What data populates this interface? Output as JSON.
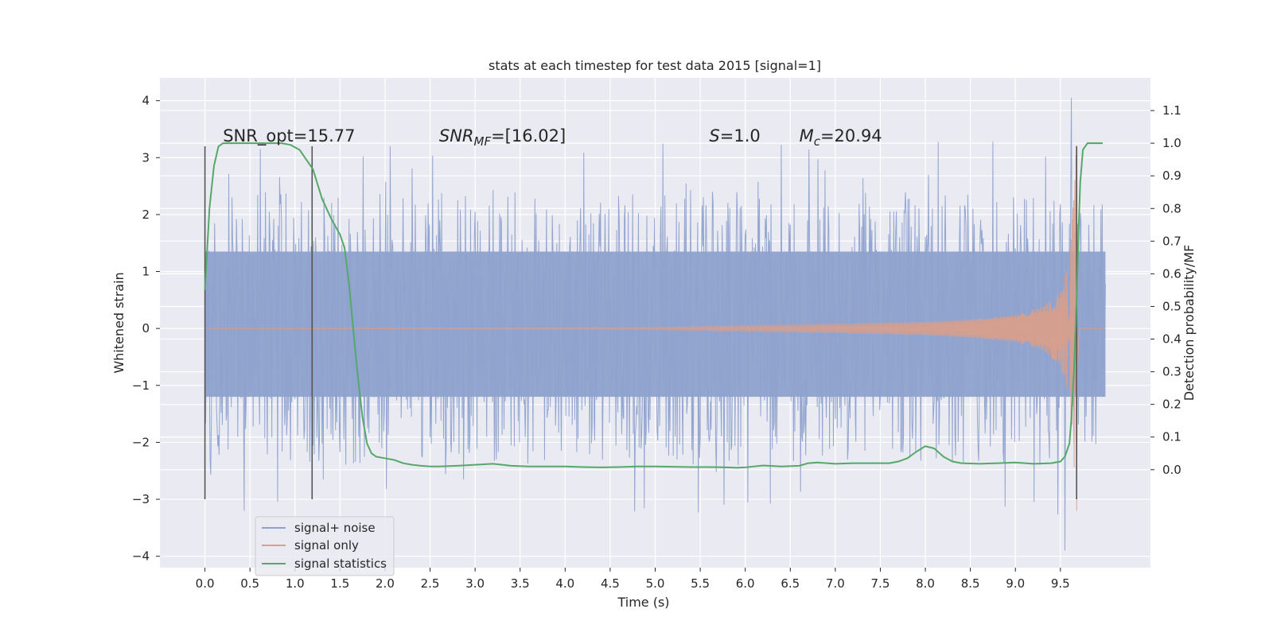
{
  "chart_data": {
    "type": "line",
    "title": "stats at each timestep for test data 2015 [signal=1]",
    "xlabel": "Time (s)",
    "ylabel": "Whitened strain",
    "ylabel_right": "Detection probability/MF",
    "xlim": [
      -0.5,
      10.5
    ],
    "ylim": [
      -4.2,
      4.4
    ],
    "ylim_right": [
      -0.3,
      1.2
    ],
    "x_ticks": [
      0.0,
      0.5,
      1.0,
      1.5,
      2.0,
      2.5,
      3.0,
      3.5,
      4.0,
      4.5,
      5.0,
      5.5,
      6.0,
      6.5,
      7.0,
      7.5,
      8.0,
      8.5,
      9.0,
      9.5
    ],
    "x_tick_labels": [
      "0.0",
      "0.5",
      "1.0",
      "1.5",
      "2.0",
      "2.5",
      "3.0",
      "3.5",
      "4.0",
      "4.5",
      "5.0",
      "5.5",
      "6.0",
      "6.5",
      "7.0",
      "7.5",
      "8.0",
      "8.5",
      "9.0",
      "9.5"
    ],
    "y_ticks": [
      -4,
      -3,
      -2,
      -1,
      0,
      1,
      2,
      3,
      4
    ],
    "y_tick_labels": [
      "−4",
      "−3",
      "−2",
      "−1",
      "0",
      "1",
      "2",
      "3",
      "4"
    ],
    "y_ticks_right": [
      0.0,
      0.1,
      0.2,
      0.3,
      0.4,
      0.5,
      0.6,
      0.7,
      0.8,
      0.9,
      1.0,
      1.1
    ],
    "y_tick_labels_right": [
      "0.0",
      "0.1",
      "0.2",
      "0.3",
      "0.4",
      "0.5",
      "0.6",
      "0.7",
      "0.8",
      "0.9",
      "1.0",
      "1.1"
    ],
    "grid": true,
    "legend_position": "lower-left",
    "noise_envelope": {
      "x_range": [
        0.0,
        10.0
      ],
      "core_band": [
        -1.2,
        1.35
      ],
      "typical_peak": 2.4,
      "max_peak": 4.05,
      "min_peak": -3.9
    },
    "signal_envelope": {
      "merger_time": 9.68,
      "points": [
        {
          "t": 5.0,
          "a": 0.02
        },
        {
          "t": 6.0,
          "a": 0.05
        },
        {
          "t": 7.0,
          "a": 0.08
        },
        {
          "t": 8.0,
          "a": 0.12
        },
        {
          "t": 8.5,
          "a": 0.16
        },
        {
          "t": 9.0,
          "a": 0.24
        },
        {
          "t": 9.3,
          "a": 0.38
        },
        {
          "t": 9.5,
          "a": 0.65
        },
        {
          "t": 9.6,
          "a": 1.2
        },
        {
          "t": 9.65,
          "a": 2.4
        },
        {
          "t": 9.68,
          "a": 3.3
        }
      ]
    },
    "series": [
      {
        "name": "signal+ noise",
        "color": "#8ea2cd"
      },
      {
        "name": "signal only",
        "color": "#dd9e88"
      },
      {
        "name": "signal statistics",
        "color": "#55a868",
        "axis": "right",
        "x": [
          0.0,
          0.05,
          0.1,
          0.15,
          0.2,
          0.3,
          0.5,
          0.7,
          0.85,
          0.95,
          1.05,
          1.1,
          1.2,
          1.3,
          1.4,
          1.5,
          1.55,
          1.6,
          1.65,
          1.7,
          1.75,
          1.8,
          1.85,
          1.9,
          2.0,
          2.1,
          2.2,
          2.3,
          2.4,
          2.5,
          2.6,
          2.8,
          3.0,
          3.2,
          3.4,
          3.6,
          3.8,
          4.0,
          4.2,
          4.4,
          4.6,
          4.8,
          5.0,
          5.2,
          5.4,
          5.6,
          5.8,
          5.9,
          6.0,
          6.1,
          6.2,
          6.4,
          6.6,
          6.7,
          6.8,
          7.0,
          7.2,
          7.4,
          7.6,
          7.7,
          7.8,
          7.9,
          8.0,
          8.1,
          8.2,
          8.3,
          8.4,
          8.6,
          8.8,
          9.0,
          9.2,
          9.4,
          9.5,
          9.55,
          9.6,
          9.62,
          9.65,
          9.68,
          9.7,
          9.72,
          9.75,
          9.8,
          9.9,
          9.97
        ],
        "y": [
          0.55,
          0.8,
          0.93,
          0.99,
          1.0,
          1.0,
          1.0,
          1.0,
          1.0,
          0.995,
          0.98,
          0.96,
          0.92,
          0.83,
          0.77,
          0.72,
          0.68,
          0.57,
          0.42,
          0.28,
          0.16,
          0.08,
          0.05,
          0.04,
          0.035,
          0.03,
          0.02,
          0.015,
          0.012,
          0.01,
          0.01,
          0.012,
          0.015,
          0.018,
          0.012,
          0.01,
          0.01,
          0.01,
          0.008,
          0.007,
          0.008,
          0.01,
          0.01,
          0.009,
          0.008,
          0.008,
          0.007,
          0.006,
          0.007,
          0.01,
          0.013,
          0.01,
          0.012,
          0.02,
          0.022,
          0.018,
          0.02,
          0.02,
          0.02,
          0.025,
          0.035,
          0.055,
          0.072,
          0.065,
          0.04,
          0.025,
          0.02,
          0.018,
          0.02,
          0.022,
          0.018,
          0.02,
          0.025,
          0.04,
          0.08,
          0.15,
          0.3,
          0.52,
          0.72,
          0.88,
          0.98,
          1.0,
          1.0,
          1.0
        ]
      }
    ],
    "vertical_markers": [
      {
        "x": 0.0,
        "ymin": -3.0,
        "ymax": 3.2,
        "color": "#555555"
      },
      {
        "x": 1.19,
        "ymin": -3.0,
        "ymax": 3.2,
        "color": "#555555"
      },
      {
        "x": 9.68,
        "ymin": -3.0,
        "ymax": 3.2,
        "color": "#555555"
      }
    ],
    "annotations": [
      {
        "name": "snr-opt",
        "text": "SNR_opt=15.77",
        "x": 0.2,
        "y": 3.28
      },
      {
        "name": "snr-mf",
        "prefix": "SNR",
        "sub": "MF",
        "suffix": "=[16.02]",
        "x": 2.6,
        "y": 3.28
      },
      {
        "name": "s",
        "prefix": "S",
        "suffix": "=1.0",
        "x": 5.6,
        "y": 3.28
      },
      {
        "name": "mc",
        "prefix": "M",
        "sub": "c",
        "suffix": "=20.94",
        "x": 6.6,
        "y": 3.28
      }
    ]
  }
}
